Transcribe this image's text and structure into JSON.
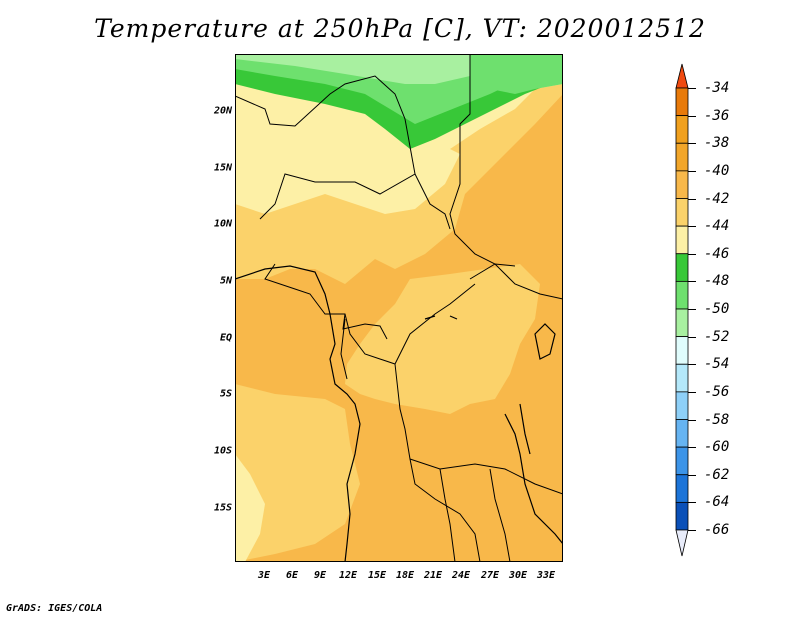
{
  "title": "Temperature at 250hPa [C], VT: 2020012512",
  "credit": "GrADS: IGES/COLA",
  "lat_labels": [
    "20N",
    "15N",
    "10N",
    "5N",
    "EQ",
    "5S",
    "10S",
    "15S"
  ],
  "lon_labels": [
    "3E",
    "6E",
    "9E",
    "12E",
    "15E",
    "18E",
    "21E",
    "24E",
    "27E",
    "30E",
    "33E"
  ],
  "colorbar": {
    "labels": [
      "-34",
      "-36",
      "-38",
      "-40",
      "-42",
      "-44",
      "-46",
      "-48",
      "-50",
      "-52",
      "-54",
      "-56",
      "-58",
      "-60",
      "-62",
      "-64",
      "-66"
    ],
    "colors": [
      "#f0a01e",
      "#e87a0a",
      "#f2a62a",
      "#f8b84a",
      "#fbd26a",
      "#fdf0a6",
      "#38c838",
      "#6ee06e",
      "#a8f0a0",
      "#e0fcfc",
      "#b4e8fa",
      "#8ed0f8",
      "#66b4f2",
      "#3c94e8",
      "#1c74d8",
      "#0a50b8",
      "#081c78"
    ],
    "top_color": "#f04a10",
    "bottom_color": "#e8ecfa"
  },
  "palette": {
    "t36": "#f2a62a",
    "t38": "#f8b84a",
    "t40": "#fbd26a",
    "t42": "#fdf0a6",
    "t44": "#38c838",
    "t46": "#6ee06e",
    "t48": "#a8f0a0"
  }
}
